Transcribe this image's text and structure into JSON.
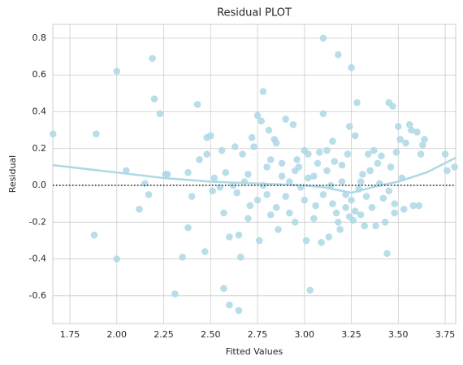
{
  "chart_data": {
    "type": "scatter",
    "title": "Residual PLOT",
    "x_label": "Fitted Values",
    "y_label": "Residual",
    "color": "#add8e6",
    "grid": true,
    "hline": 0,
    "xlim": [
      1.659,
      3.806
    ],
    "ylim": [
      -0.751,
      0.875
    ],
    "xticks": [
      1.75,
      {
        "value": 2.0,
        "label": "2.00"
      },
      2.25,
      {
        "value": 2.5,
        "label": "2.50"
      },
      2.75,
      {
        "value": 3.0,
        "label": "3.00"
      },
      3.25,
      {
        "value": 3.5,
        "label": "3.50"
      },
      3.75
    ],
    "yticks": [
      -0.6,
      -0.4,
      -0.2,
      {
        "value": 0,
        "label": "0.0"
      },
      0.2,
      0.4,
      0.6,
      0.8
    ],
    "x": [
      1.66,
      1.88,
      1.89,
      2.0,
      2.0,
      2.05,
      2.12,
      2.15,
      2.17,
      2.19,
      2.2,
      2.23,
      2.26,
      2.27,
      2.31,
      2.35,
      2.38,
      2.38,
      2.4,
      2.43,
      2.44,
      2.47,
      2.48,
      2.48,
      2.5,
      2.51,
      2.52,
      2.55,
      2.56,
      2.57,
      2.57,
      2.58,
      2.6,
      2.6,
      2.62,
      2.63,
      2.64,
      2.65,
      2.65,
      2.66,
      2.67,
      2.68,
      2.7,
      2.71,
      2.72,
      2.73,
      2.75,
      2.76,
      2.77,
      2.78,
      2.8,
      2.81,
      2.82,
      2.84,
      2.85,
      2.86,
      2.88,
      2.9,
      2.9,
      2.92,
      2.94,
      2.95,
      2.96,
      2.98,
      3.0,
      3.01,
      3.02,
      3.03,
      3.05,
      3.06,
      3.08,
      3.09,
      3.1,
      3.1,
      3.12,
      3.13,
      3.14,
      3.15,
      3.17,
      3.18,
      3.19,
      3.2,
      3.22,
      3.23,
      3.24,
      3.25,
      3.26,
      3.27,
      3.28,
      3.29,
      3.3,
      3.31,
      3.32,
      3.34,
      3.35,
      3.36,
      3.37,
      3.38,
      3.39,
      3.4,
      3.41,
      3.42,
      3.43,
      3.44,
      3.45,
      3.46,
      3.47,
      3.48,
      3.49,
      3.5,
      3.51,
      3.52,
      3.53,
      3.54,
      3.56,
      3.57,
      3.58,
      3.6,
      3.61,
      3.62,
      3.63,
      3.64,
      3.75,
      3.76,
      3.8,
      2.75,
      2.8,
      2.85,
      2.88,
      2.92,
      2.95,
      3.0,
      3.05,
      3.1,
      3.12,
      3.15,
      3.18,
      3.2,
      3.22,
      3.25,
      3.27,
      3.3,
      3.33,
      3.45,
      3.48,
      2.82,
      2.97,
      3.07,
      3.16,
      2.7,
      2.78,
      3.02,
      3.24
    ],
    "values": [
      0.28,
      -0.27,
      0.28,
      0.62,
      -0.4,
      0.08,
      -0.13,
      0.01,
      -0.05,
      0.69,
      0.47,
      0.39,
      0.06,
      0.06,
      -0.59,
      -0.39,
      0.07,
      -0.23,
      -0.06,
      0.44,
      0.14,
      -0.36,
      0.26,
      0.17,
      0.27,
      -0.03,
      0.04,
      -0.01,
      0.19,
      -0.15,
      -0.56,
      0.07,
      -0.28,
      -0.65,
      0.0,
      0.21,
      -0.04,
      -0.27,
      -0.68,
      -0.39,
      0.17,
      0.02,
      0.06,
      -0.11,
      0.26,
      0.21,
      0.38,
      -0.3,
      0.35,
      0.51,
      0.1,
      0.3,
      0.14,
      0.25,
      0.23,
      -0.24,
      0.12,
      -0.06,
      0.36,
      0.02,
      0.33,
      -0.2,
      0.14,
      -0.01,
      0.19,
      -0.3,
      0.17,
      -0.57,
      0.05,
      -0.11,
      0.18,
      -0.31,
      0.8,
      0.39,
      0.19,
      -0.28,
      0.0,
      0.24,
      -0.15,
      0.71,
      -0.24,
      0.11,
      -0.05,
      0.17,
      0.32,
      0.64,
      -0.19,
      0.27,
      0.45,
      -0.02,
      -0.16,
      0.06,
      -0.22,
      0.17,
      0.08,
      -0.12,
      0.19,
      -0.22,
      0.12,
      0.01,
      0.16,
      -0.07,
      -0.2,
      -0.37,
      0.45,
      0.1,
      0.43,
      -0.1,
      0.18,
      0.32,
      0.25,
      0.04,
      -0.13,
      0.23,
      0.33,
      0.3,
      -0.11,
      0.29,
      -0.11,
      0.17,
      0.22,
      0.25,
      0.17,
      0.08,
      0.1,
      -0.08,
      -0.05,
      -0.12,
      0.05,
      -0.15,
      0.08,
      -0.08,
      -0.18,
      -0.05,
      0.08,
      -0.1,
      -0.2,
      0.02,
      -0.12,
      -0.08,
      -0.14,
      0.02,
      -0.06,
      -0.03,
      -0.15,
      -0.16,
      0.1,
      0.12,
      0.13,
      -0.18,
      0.0,
      0.04,
      -0.17
    ],
    "lowess": {
      "x": [
        1.659,
        2.0,
        2.25,
        2.5,
        2.75,
        3.0,
        3.1,
        3.25,
        3.4,
        3.5,
        3.65,
        3.806
      ],
      "values": [
        0.11,
        0.07,
        0.04,
        0.02,
        0.01,
        0.0,
        -0.01,
        -0.04,
        0.0,
        0.02,
        0.07,
        0.15
      ]
    }
  }
}
